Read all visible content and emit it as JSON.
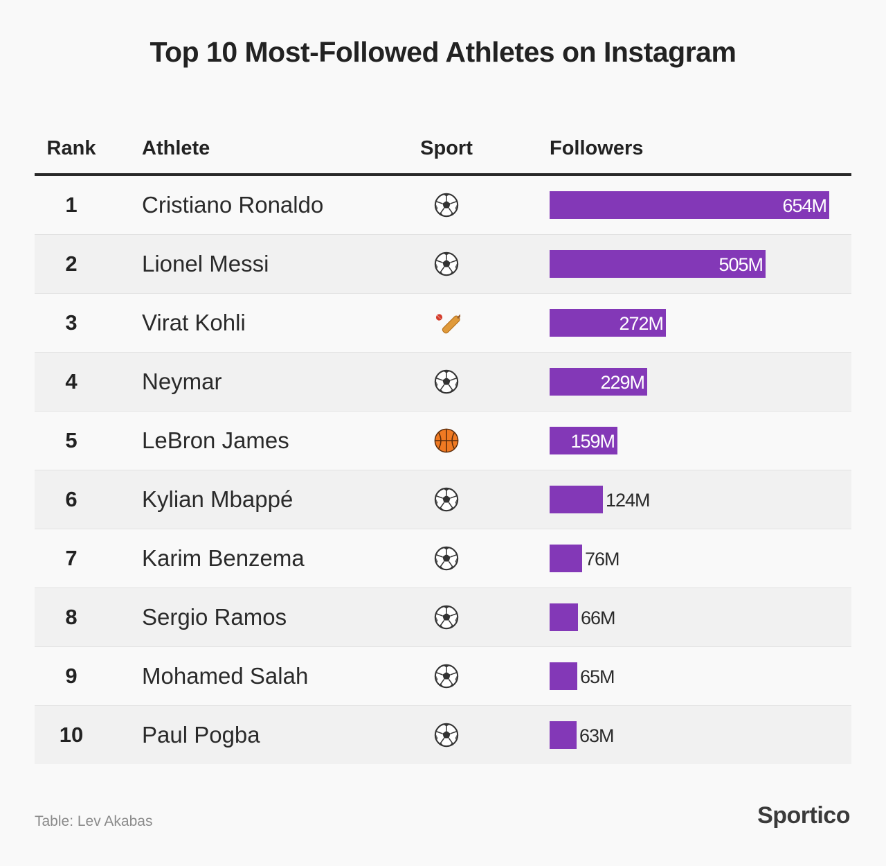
{
  "title": "Top 10 Most-Followed Athletes on Instagram",
  "columns": {
    "rank": "Rank",
    "athlete": "Athlete",
    "sport": "Sport",
    "followers": "Followers"
  },
  "colors": {
    "bar": "#8338b7",
    "row_alt": "#f1f1f1",
    "text": "#222222"
  },
  "chart_data": {
    "type": "bar",
    "orientation": "horizontal",
    "title": "Top 10 Most-Followed Athletes on Instagram",
    "categories": [
      "Cristiano Ronaldo",
      "Lionel Messi",
      "Virat Kohli",
      "Neymar",
      "LeBron James",
      "Kylian Mbappé",
      "Karim Benzema",
      "Sergio Ramos",
      "Mohamed Salah",
      "Paul Pogba"
    ],
    "values": [
      654,
      505,
      272,
      229,
      159,
      124,
      76,
      66,
      65,
      63
    ],
    "value_labels": [
      "654M",
      "505M",
      "272M",
      "229M",
      "159M",
      "124M",
      "76M",
      "66M",
      "65M",
      "63M"
    ],
    "xlim": [
      0,
      654
    ],
    "grid": false,
    "legend": "none",
    "rows": [
      {
        "rank": "1",
        "athlete": "Cristiano Ronaldo",
        "sport_icon": "soccer-ball-icon",
        "followers": 654,
        "label": "654M"
      },
      {
        "rank": "2",
        "athlete": "Lionel Messi",
        "sport_icon": "soccer-ball-icon",
        "followers": 505,
        "label": "505M"
      },
      {
        "rank": "3",
        "athlete": "Virat Kohli",
        "sport_icon": "cricket-bat-icon",
        "followers": 272,
        "label": "272M"
      },
      {
        "rank": "4",
        "athlete": "Neymar",
        "sport_icon": "soccer-ball-icon",
        "followers": 229,
        "label": "229M"
      },
      {
        "rank": "5",
        "athlete": "LeBron James",
        "sport_icon": "basketball-icon",
        "followers": 159,
        "label": "159M"
      },
      {
        "rank": "6",
        "athlete": "Kylian Mbappé",
        "sport_icon": "soccer-ball-icon",
        "followers": 124,
        "label": "124M"
      },
      {
        "rank": "7",
        "athlete": "Karim Benzema",
        "sport_icon": "soccer-ball-icon",
        "followers": 76,
        "label": "76M"
      },
      {
        "rank": "8",
        "athlete": "Sergio Ramos",
        "sport_icon": "soccer-ball-icon",
        "followers": 66,
        "label": "66M"
      },
      {
        "rank": "9",
        "athlete": "Mohamed Salah",
        "sport_icon": "soccer-ball-icon",
        "followers": 65,
        "label": "65M"
      },
      {
        "rank": "10",
        "athlete": "Paul Pogba",
        "sport_icon": "soccer-ball-icon",
        "followers": 63,
        "label": "63M"
      }
    ]
  },
  "footer": {
    "source": "Table: Lev Akabas",
    "brand": "Sportico"
  }
}
